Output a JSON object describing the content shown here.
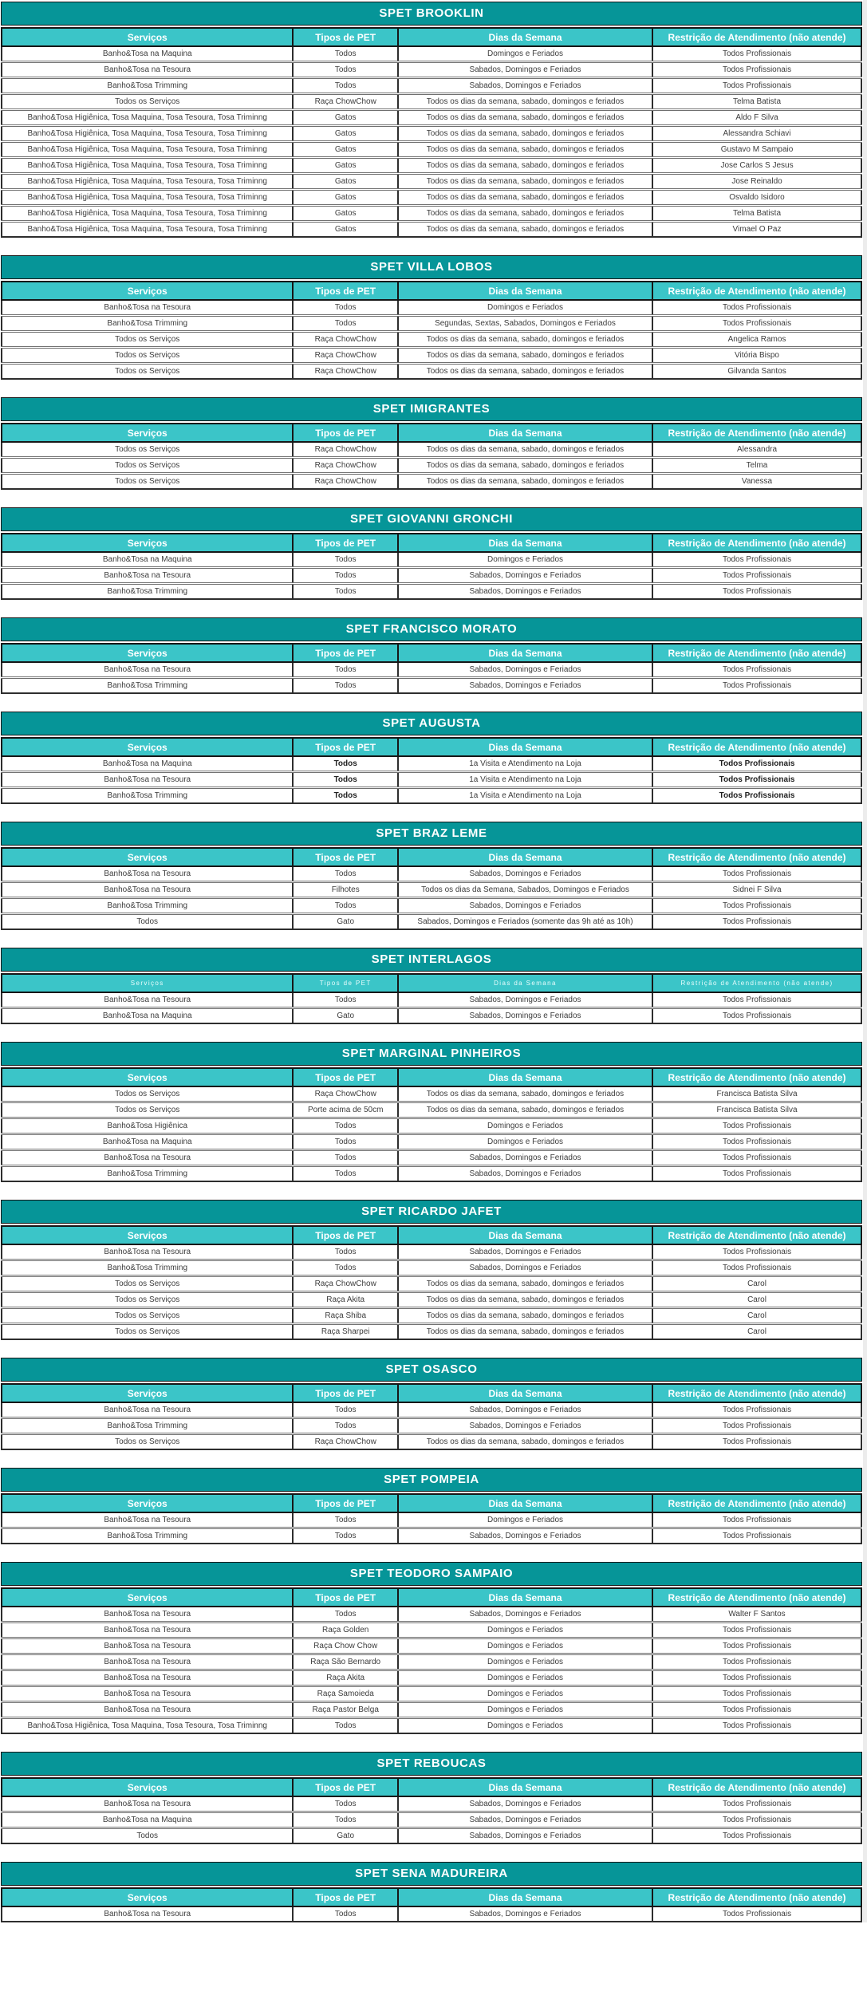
{
  "colors": {
    "title_bg": "#069598",
    "header_bg": "#3bc5c8",
    "header_text": "#ffffff",
    "row_text": "#3d3d3d",
    "border": "#161616"
  },
  "columns": [
    "Serviços",
    "Tipos de PET",
    "Dias da Semana",
    "Restrição de Atendimento (não atende)"
  ],
  "tables": [
    {
      "title": "SPET BROOKLIN",
      "rows": [
        [
          "Banho&Tosa na Maquina",
          "Todos",
          "Domingos e Feriados",
          "Todos Profissionais"
        ],
        [
          "Banho&Tosa na Tesoura",
          "Todos",
          "Sabados, Domingos e Feriados",
          "Todos Profissionais"
        ],
        [
          "Banho&Tosa Trimming",
          "Todos",
          "Sabados, Domingos e Feriados",
          "Todos Profissionais"
        ],
        [
          "Todos os Serviços",
          "Raça ChowChow",
          "Todos os dias da semana, sabado, domingos e feriados",
          "Telma Batista"
        ],
        [
          "Banho&Tosa Higiênica, Tosa Maquina, Tosa Tesoura, Tosa Triminng",
          "Gatos",
          "Todos os dias da semana, sabado, domingos e feriados",
          "Aldo F Silva"
        ],
        [
          "Banho&Tosa Higiênica, Tosa Maquina, Tosa Tesoura, Tosa Triminng",
          "Gatos",
          "Todos os dias da semana, sabado, domingos e feriados",
          "Alessandra Schiavi"
        ],
        [
          "Banho&Tosa Higiênica, Tosa Maquina, Tosa Tesoura, Tosa Triminng",
          "Gatos",
          "Todos os dias da semana, sabado, domingos e feriados",
          "Gustavo M Sampaio"
        ],
        [
          "Banho&Tosa Higiênica, Tosa Maquina, Tosa Tesoura, Tosa Triminng",
          "Gatos",
          "Todos os dias da semana, sabado, domingos e feriados",
          "Jose Carlos S Jesus"
        ],
        [
          "Banho&Tosa Higiênica, Tosa Maquina, Tosa Tesoura, Tosa Triminng",
          "Gatos",
          "Todos os dias da semana, sabado, domingos e feriados",
          "Jose Reinaldo"
        ],
        [
          "Banho&Tosa Higiênica, Tosa Maquina, Tosa Tesoura, Tosa Triminng",
          "Gatos",
          "Todos os dias da semana, sabado, domingos e feriados",
          "Osvaldo Isidoro"
        ],
        [
          "Banho&Tosa Higiênica, Tosa Maquina, Tosa Tesoura, Tosa Triminng",
          "Gatos",
          "Todos os dias da semana, sabado, domingos e feriados",
          "Telma Batista"
        ],
        [
          "Banho&Tosa Higiênica, Tosa Maquina, Tosa Tesoura, Tosa Triminng",
          "Gatos",
          "Todos os dias da semana, sabado, domingos e feriados",
          "Vimael O Paz"
        ]
      ]
    },
    {
      "title": "SPET VILLA LOBOS",
      "rows": [
        [
          "Banho&Tosa na Tesoura",
          "Todos",
          "Domingos e Feriados",
          "Todos Profissionais"
        ],
        [
          "Banho&Tosa Trimming",
          "Todos",
          "Segundas, Sextas, Sabados, Domingos e Feriados",
          "Todos Profissionais"
        ],
        [
          "Todos os Serviços",
          "Raça ChowChow",
          "Todos os dias da semana, sabado, domingos e feriados",
          "Angelica Ramos"
        ],
        [
          "Todos os Serviços",
          "Raça ChowChow",
          "Todos os dias da semana, sabado, domingos e feriados",
          "Vitória Bispo"
        ],
        [
          "Todos os Serviços",
          "Raça ChowChow",
          "Todos os dias da semana, sabado, domingos e feriados",
          "Gilvanda Santos"
        ]
      ]
    },
    {
      "title": "SPET IMIGRANTES",
      "rows": [
        [
          "Todos os Serviços",
          "Raça ChowChow",
          "Todos os dias da semana, sabado, domingos e feriados",
          "Alessandra"
        ],
        [
          "Todos os Serviços",
          "Raça ChowChow",
          "Todos os dias da semana, sabado, domingos e feriados",
          "Telma"
        ],
        [
          "Todos os Serviços",
          "Raça ChowChow",
          "Todos os dias da semana, sabado, domingos e feriados",
          "Vanessa"
        ]
      ]
    },
    {
      "title": "SPET GIOVANNI GRONCHI",
      "rows": [
        [
          "Banho&Tosa na Maquina",
          "Todos",
          "Domingos e Feriados",
          "Todos Profissionais"
        ],
        [
          "Banho&Tosa na Tesoura",
          "Todos",
          "Sabados, Domingos e Feriados",
          "Todos Profissionais"
        ],
        [
          "Banho&Tosa Trimming",
          "Todos",
          "Sabados, Domingos e Feriados",
          "Todos Profissionais"
        ]
      ]
    },
    {
      "title": "SPET FRANCISCO MORATO",
      "rows": [
        [
          "Banho&Tosa na Tesoura",
          "Todos",
          "Sabados, Domingos e Feriados",
          "Todos Profissionais"
        ],
        [
          "Banho&Tosa Trimming",
          "Todos",
          "Sabados, Domingos e Feriados",
          "Todos Profissionais"
        ]
      ]
    },
    {
      "title": "SPET AUGUSTA",
      "bold_cols": [
        1,
        3
      ],
      "rows": [
        [
          "Banho&Tosa na Maquina",
          "Todos",
          "1a Visita e Atendimento na Loja",
          "Todos Profissionais"
        ],
        [
          "Banho&Tosa na Tesoura",
          "Todos",
          "1a Visita e Atendimento na Loja",
          "Todos Profissionais"
        ],
        [
          "Banho&Tosa Trimming",
          "Todos",
          "1a Visita e Atendimento na Loja",
          "Todos Profissionais"
        ]
      ]
    },
    {
      "title": "SPET BRAZ LEME",
      "rows": [
        [
          "Banho&Tosa na Tesoura",
          "Todos",
          "Sabados, Domingos e Feriados",
          "Todos Profissionais"
        ],
        [
          "Banho&Tosa na Tesoura",
          "Filhotes",
          "Todos os dias da Semana, Sabados, Domingos e Feriados",
          "Sidnei F Silva"
        ],
        [
          "Banho&Tosa Trimming",
          "Todos",
          "Sabados, Domingos e Feriados",
          "Todos Profissionais"
        ],
        [
          "Todos",
          "Gato",
          "Sabados, Domingos e Feriados (somente das 9h até as 10h)",
          "Todos Profissionais"
        ]
      ]
    },
    {
      "title": "SPET INTERLAGOS",
      "header_small": true,
      "rows": [
        [
          "Banho&Tosa na Tesoura",
          "Todos",
          "Sabados, Domingos e Feriados",
          "Todos Profissionais"
        ],
        [
          "Banho&Tosa na Maquina",
          "Gato",
          "Sabados, Domingos e Feriados",
          "Todos Profissionais"
        ]
      ]
    },
    {
      "title": "SPET MARGINAL PINHEIROS",
      "rows": [
        [
          "Todos os Serviços",
          "Raça ChowChow",
          "Todos os dias da semana, sabado, domingos e feriados",
          "Francisca Batista Silva"
        ],
        [
          "Todos os Serviços",
          "Porte acima de 50cm",
          "Todos os dias da semana, sabado, domingos e feriados",
          "Francisca Batista Silva"
        ],
        [
          "Banho&Tosa Higiênica",
          "Todos",
          "Domingos e Feriados",
          "Todos Profissionais"
        ],
        [
          "Banho&Tosa na Maquina",
          "Todos",
          "Domingos e Feriados",
          "Todos Profissionais"
        ],
        [
          "Banho&Tosa na Tesoura",
          "Todos",
          "Sabados, Domingos e Feriados",
          "Todos Profissionais"
        ],
        [
          "Banho&Tosa Trimming",
          "Todos",
          "Sabados, Domingos e Feriados",
          "Todos Profissionais"
        ]
      ]
    },
    {
      "title": "SPET RICARDO JAFET",
      "rows": [
        [
          "Banho&Tosa na Tesoura",
          "Todos",
          "Sabados, Domingos e Feriados",
          "Todos Profissionais"
        ],
        [
          "Banho&Tosa Trimming",
          "Todos",
          "Sabados, Domingos e Feriados",
          "Todos Profissionais"
        ],
        [
          "Todos os Serviços",
          "Raça ChowChow",
          "Todos os dias da semana, sabado, domingos e feriados",
          "Carol"
        ],
        [
          "Todos os Serviços",
          "Raça Akita",
          "Todos os dias da semana, sabado, domingos e feriados",
          "Carol"
        ],
        [
          "Todos os Serviços",
          "Raça Shiba",
          "Todos os dias da semana, sabado, domingos e feriados",
          "Carol"
        ],
        [
          "Todos os Serviços",
          "Raça Sharpei",
          "Todos os dias da semana, sabado, domingos e feriados",
          "Carol"
        ]
      ]
    },
    {
      "title": "SPET OSASCO",
      "rows": [
        [
          "Banho&Tosa na Tesoura",
          "Todos",
          "Sabados, Domingos e Feriados",
          "Todos Profissionais"
        ],
        [
          "Banho&Tosa Trimming",
          "Todos",
          "Sabados, Domingos e Feriados",
          "Todos Profissionais"
        ],
        [
          "Todos os Serviços",
          "Raça ChowChow",
          "Todos os dias da semana, sabado, domingos e feriados",
          "Todos Profissionais"
        ]
      ]
    },
    {
      "title": "SPET POMPEIA",
      "rows": [
        [
          "Banho&Tosa na Tesoura",
          "Todos",
          "Domingos e Feriados",
          "Todos Profissionais"
        ],
        [
          "Banho&Tosa Trimming",
          "Todos",
          "Sabados, Domingos e Feriados",
          "Todos Profissionais"
        ]
      ]
    },
    {
      "title": "SPET TEODORO SAMPAIO",
      "rows": [
        [
          "Banho&Tosa na Tesoura",
          "Todos",
          "Sabados, Domingos e Feriados",
          "Walter F Santos"
        ],
        [
          "Banho&Tosa na Tesoura",
          "Raça Golden",
          "Domingos e Feriados",
          "Todos Profissionais"
        ],
        [
          "Banho&Tosa na Tesoura",
          "Raça Chow Chow",
          "Domingos e Feriados",
          "Todos Profissionais"
        ],
        [
          "Banho&Tosa na Tesoura",
          "Raça São Bernardo",
          "Domingos e Feriados",
          "Todos Profissionais"
        ],
        [
          "Banho&Tosa na Tesoura",
          "Raça Akita",
          "Domingos e Feriados",
          "Todos Profissionais"
        ],
        [
          "Banho&Tosa na Tesoura",
          "Raça Samoieda",
          "Domingos e Feriados",
          "Todos Profissionais"
        ],
        [
          "Banho&Tosa na Tesoura",
          "Raça Pastor Belga",
          "Domingos e Feriados",
          "Todos Profissionais"
        ],
        [
          "Banho&Tosa Higiênica, Tosa Maquina, Tosa Tesoura, Tosa Triminng",
          "Todos",
          "Domingos e Feriados",
          "Todos Profissionais"
        ]
      ]
    },
    {
      "title": "SPET REBOUCAS",
      "rows": [
        [
          "Banho&Tosa na Tesoura",
          "Todos",
          "Sabados, Domingos e Feriados",
          "Todos Profissionais"
        ],
        [
          "Banho&Tosa na Maquina",
          "Todos",
          "Sabados, Domingos e Feriados",
          "Todos Profissionais"
        ],
        [
          "Todos",
          "Gato",
          "Sabados, Domingos e Feriados",
          "Todos Profissionais"
        ]
      ]
    },
    {
      "title": "SPET SENA MADUREIRA",
      "rows": [
        [
          "Banho&Tosa na Tesoura",
          "Todos",
          "Sabados, Domingos e Feriados",
          "Todos Profissionais"
        ]
      ]
    }
  ]
}
